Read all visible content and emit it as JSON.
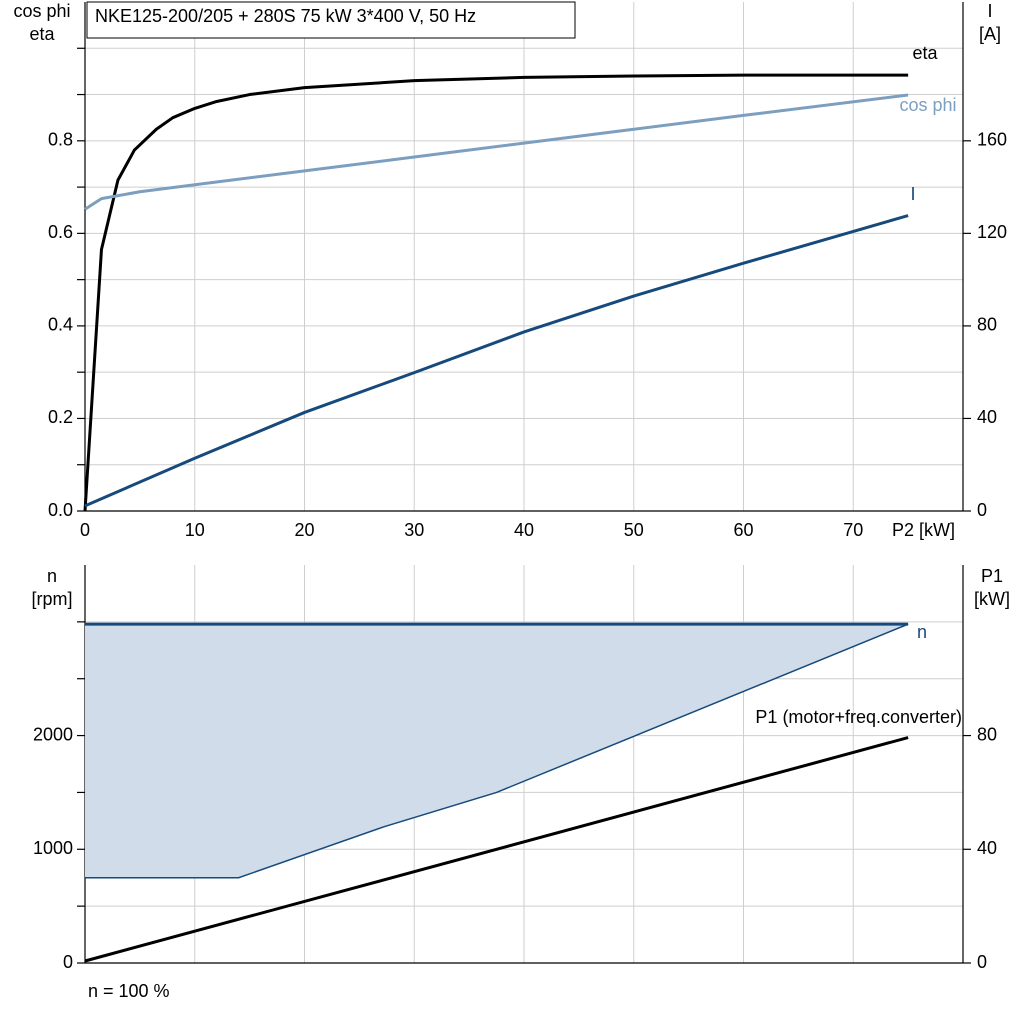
{
  "chart_data": [
    {
      "type": "line",
      "title": "NKE125-200/205 + 280S   75 kW   3*400 V, 50 Hz",
      "xlabel": "P2 [kW]",
      "ylabel": [
        "cos phi",
        "eta"
      ],
      "y2label": [
        "I",
        "[A]"
      ],
      "xlim": [
        0,
        80
      ],
      "xticks": [
        0,
        10,
        20,
        30,
        40,
        50,
        60,
        70
      ],
      "ylim": [
        0,
        1.1
      ],
      "yticks": [
        {
          "value": 0,
          "label": "0.0"
        },
        0.2,
        0.4,
        0.6,
        0.8
      ],
      "yticks_minor": [
        0.1,
        0.3,
        0.5,
        0.7,
        0.9,
        1.0
      ],
      "y2lim": [
        0,
        220
      ],
      "y2ticks": [
        0,
        40,
        80,
        120,
        160
      ],
      "grid": true,
      "series": [
        {
          "name": "eta",
          "color": "#000000",
          "x": [
            0,
            1.5,
            3,
            4.5,
            6.5,
            8,
            10,
            12,
            15,
            20,
            30,
            40,
            50,
            60,
            75
          ],
          "values": [
            0,
            0.565,
            0.715,
            0.78,
            0.825,
            0.85,
            0.87,
            0.885,
            0.9,
            0.915,
            0.93,
            0.937,
            0.94,
            0.942,
            0.942
          ]
        },
        {
          "name": "cos phi",
          "color": "#7c9fc0",
          "x": [
            0,
            1.5,
            5,
            10,
            20,
            30,
            40,
            50,
            60,
            75
          ],
          "values": [
            0.652,
            0.675,
            0.69,
            0.705,
            0.735,
            0.765,
            0.795,
            0.825,
            0.855,
            0.899
          ]
        },
        {
          "name": "I",
          "color": "#174a7c",
          "axis": "y2",
          "x": [
            0,
            10,
            20,
            30,
            40,
            50,
            60,
            75
          ],
          "values": [
            2.2,
            22.8,
            42.6,
            59.8,
            77.4,
            92.9,
            107.1,
            127.7
          ]
        }
      ]
    },
    {
      "type": "line",
      "note": "n = 100 %",
      "ylabel": [
        "n",
        "[rpm]"
      ],
      "y2label": [
        "P1",
        "[kW]"
      ],
      "xlim": [
        0,
        80
      ],
      "xticks": [
        0,
        10,
        20,
        30,
        40,
        50,
        60,
        70
      ],
      "ylim": [
        0,
        3500
      ],
      "yticks": [
        0,
        1000,
        2000
      ],
      "yticks_minor": [
        500,
        1500,
        2500,
        3000
      ],
      "y2lim": [
        0,
        140
      ],
      "y2ticks": [
        0,
        40,
        80
      ],
      "grid": true,
      "area": {
        "name": "n",
        "color": "#174a7c",
        "fill": "#d0dce9",
        "x": [
          0,
          14,
          27.3,
          37.5,
          75
        ],
        "upper": [
          2980,
          2980,
          2980,
          2980,
          2980
        ],
        "lower": [
          750,
          750,
          1200,
          1500,
          2980
        ]
      },
      "series": [
        {
          "name": "P1 (motor+freq.converter)",
          "color": "#000000",
          "axis": "y2",
          "x": [
            0,
            75
          ],
          "values": [
            0.7,
            79.3
          ]
        }
      ]
    }
  ]
}
